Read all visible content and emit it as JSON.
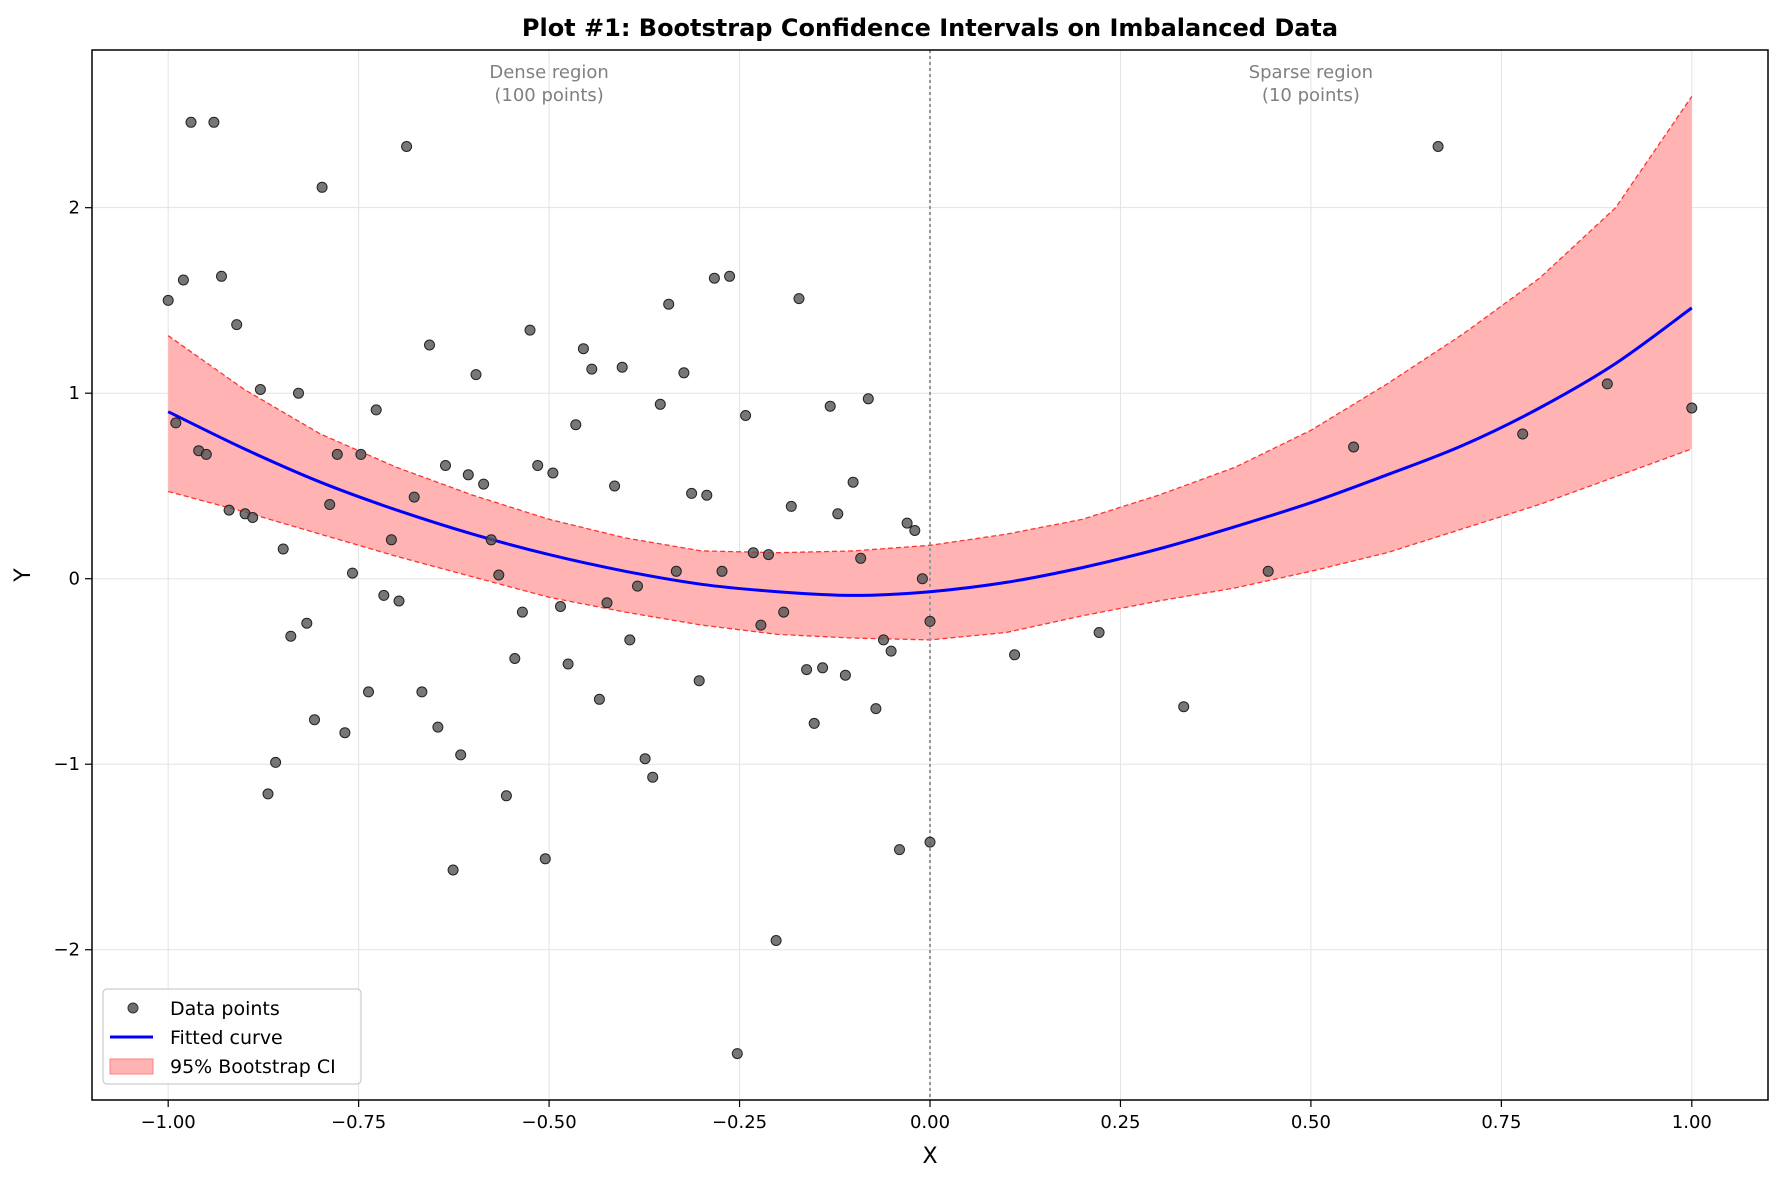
{
  "chart_data": {
    "type": "scatter",
    "title": "Plot #1: Bootstrap Confidence Intervals on Imbalanced Data",
    "xlabel": "X",
    "ylabel": "Y",
    "xlim": [
      -1.1,
      1.1
    ],
    "ylim": [
      -2.81,
      2.85
    ],
    "grid": true,
    "legend_position": "bottom-left",
    "x_ticks": [
      -1.0,
      -0.75,
      -0.5,
      -0.25,
      0.0,
      0.25,
      0.5,
      0.75,
      1.0
    ],
    "x_tick_labels": [
      "−1.00",
      "−0.75",
      "−0.50",
      "−0.25",
      "0.00",
      "0.25",
      "0.50",
      "0.75",
      "1.00"
    ],
    "y_ticks": [
      -2,
      -1,
      0,
      1,
      2
    ],
    "y_tick_labels": [
      "−2",
      "−1",
      "0",
      "1",
      "2"
    ],
    "legend": [
      "Data points",
      "Fitted curve",
      "95% Bootstrap CI"
    ],
    "annotations": [
      {
        "lines": [
          "Dense region",
          "(100 points)"
        ],
        "x": -0.5
      },
      {
        "lines": [
          "Sparse region",
          "(10 points)"
        ],
        "x": 0.5
      }
    ],
    "divider_x": 0.0,
    "colors": {
      "points": "#555555",
      "curve": "#0000ff",
      "ci_fill": "#ffb3b3",
      "ci_edge": "#ff3333",
      "divider": "#999999",
      "annotation": "#808080"
    },
    "series": [
      {
        "name": "Data points",
        "kind": "scatter",
        "points": [
          [
            -1.0,
            1.5
          ],
          [
            -0.99,
            0.84
          ],
          [
            -0.98,
            1.61
          ],
          [
            -0.97,
            2.46
          ],
          [
            -0.96,
            0.69
          ],
          [
            -0.95,
            0.67
          ],
          [
            -0.94,
            2.46
          ],
          [
            -0.93,
            1.63
          ],
          [
            -0.92,
            0.37
          ],
          [
            -0.91,
            1.37
          ],
          [
            -0.899,
            0.35
          ],
          [
            -0.889,
            0.33
          ],
          [
            -0.879,
            1.02
          ],
          [
            -0.869,
            -1.16
          ],
          [
            -0.859,
            -0.99
          ],
          [
            -0.849,
            0.16
          ],
          [
            -0.839,
            -0.31
          ],
          [
            -0.829,
            1.0
          ],
          [
            -0.818,
            -0.24
          ],
          [
            -0.808,
            -0.76
          ],
          [
            -0.798,
            2.11
          ],
          [
            -0.788,
            0.4
          ],
          [
            -0.778,
            0.67
          ],
          [
            -0.768,
            -0.83
          ],
          [
            -0.758,
            0.03
          ],
          [
            -0.747,
            0.67
          ],
          [
            -0.737,
            -0.61
          ],
          [
            -0.727,
            0.91
          ],
          [
            -0.717,
            -0.09
          ],
          [
            -0.707,
            0.21
          ],
          [
            -0.697,
            -0.12
          ],
          [
            -0.687,
            2.33
          ],
          [
            -0.677,
            0.44
          ],
          [
            -0.667,
            -0.61
          ],
          [
            -0.657,
            1.26
          ],
          [
            -0.646,
            -0.8
          ],
          [
            -0.636,
            0.61
          ],
          [
            -0.626,
            -1.57
          ],
          [
            -0.616,
            -0.95
          ],
          [
            -0.606,
            0.56
          ],
          [
            -0.596,
            1.1
          ],
          [
            -0.586,
            0.51
          ],
          [
            -0.576,
            0.21
          ],
          [
            -0.566,
            0.02
          ],
          [
            -0.556,
            -1.17
          ],
          [
            -0.545,
            -0.43
          ],
          [
            -0.535,
            -0.18
          ],
          [
            -0.525,
            1.34
          ],
          [
            -0.515,
            0.61
          ],
          [
            -0.505,
            -1.51
          ],
          [
            -0.495,
            0.57
          ],
          [
            -0.485,
            -0.15
          ],
          [
            -0.475,
            -0.46
          ],
          [
            -0.465,
            0.83
          ],
          [
            -0.455,
            1.24
          ],
          [
            -0.444,
            1.13
          ],
          [
            -0.434,
            -0.65
          ],
          [
            -0.424,
            -0.13
          ],
          [
            -0.414,
            0.5
          ],
          [
            -0.404,
            1.14
          ],
          [
            -0.394,
            -0.33
          ],
          [
            -0.384,
            -0.04
          ],
          [
            -0.374,
            -0.97
          ],
          [
            -0.364,
            -1.07
          ],
          [
            -0.354,
            0.94
          ],
          [
            -0.343,
            1.48
          ],
          [
            -0.333,
            0.04
          ],
          [
            -0.323,
            1.11
          ],
          [
            -0.313,
            0.46
          ],
          [
            -0.303,
            -0.55
          ],
          [
            -0.293,
            0.45
          ],
          [
            -0.283,
            1.62
          ],
          [
            -0.273,
            0.04
          ],
          [
            -0.263,
            1.63
          ],
          [
            -0.253,
            -2.56
          ],
          [
            -0.242,
            0.88
          ],
          [
            -0.232,
            0.14
          ],
          [
            -0.222,
            -0.25
          ],
          [
            -0.212,
            0.13
          ],
          [
            -0.202,
            -1.95
          ],
          [
            -0.192,
            -0.18
          ],
          [
            -0.182,
            0.39
          ],
          [
            -0.172,
            1.51
          ],
          [
            -0.162,
            -0.49
          ],
          [
            -0.152,
            -0.78
          ],
          [
            -0.141,
            -0.48
          ],
          [
            -0.131,
            0.93
          ],
          [
            -0.121,
            0.35
          ],
          [
            -0.111,
            -0.52
          ],
          [
            -0.101,
            0.52
          ],
          [
            -0.091,
            0.11
          ],
          [
            -0.081,
            0.97
          ],
          [
            -0.071,
            -0.7
          ],
          [
            -0.061,
            -0.33
          ],
          [
            -0.051,
            -0.39
          ],
          [
            -0.04,
            -1.46
          ],
          [
            -0.03,
            0.3
          ],
          [
            -0.02,
            0.26
          ],
          [
            -0.01,
            0.0
          ],
          [
            0.0,
            -1.42
          ],
          [
            0.0,
            -0.23
          ],
          [
            0.111,
            -0.41
          ],
          [
            0.222,
            -0.29
          ],
          [
            0.333,
            -0.69
          ],
          [
            0.444,
            0.04
          ],
          [
            0.556,
            0.71
          ],
          [
            0.667,
            2.33
          ],
          [
            0.778,
            0.78
          ],
          [
            0.889,
            1.05
          ],
          [
            1.0,
            0.92
          ]
        ]
      },
      {
        "name": "Fitted curve",
        "kind": "line",
        "x": [
          -1.0,
          -0.9,
          -0.8,
          -0.7,
          -0.6,
          -0.5,
          -0.4,
          -0.3,
          -0.2,
          -0.1,
          0.0,
          0.1,
          0.2,
          0.3,
          0.4,
          0.5,
          0.6,
          0.7,
          0.8,
          0.9,
          1.0
        ],
        "y": [
          0.9,
          0.7,
          0.52,
          0.37,
          0.24,
          0.13,
          0.04,
          -0.03,
          -0.07,
          -0.09,
          -0.07,
          -0.02,
          0.06,
          0.16,
          0.28,
          0.41,
          0.56,
          0.72,
          0.92,
          1.16,
          1.46
        ]
      },
      {
        "name": "95% Bootstrap CI",
        "kind": "band",
        "x": [
          -1.0,
          -0.9,
          -0.8,
          -0.7,
          -0.6,
          -0.5,
          -0.4,
          -0.3,
          -0.2,
          -0.1,
          0.0,
          0.1,
          0.2,
          0.3,
          0.4,
          0.5,
          0.6,
          0.7,
          0.8,
          0.9,
          1.0
        ],
        "lower": [
          0.47,
          0.36,
          0.24,
          0.12,
          0.01,
          -0.1,
          -0.18,
          -0.25,
          -0.3,
          -0.32,
          -0.33,
          -0.29,
          -0.2,
          -0.12,
          -0.05,
          0.04,
          0.14,
          0.27,
          0.4,
          0.55,
          0.7
        ],
        "upper": [
          1.31,
          1.02,
          0.78,
          0.6,
          0.45,
          0.32,
          0.22,
          0.15,
          0.14,
          0.15,
          0.18,
          0.24,
          0.32,
          0.45,
          0.6,
          0.8,
          1.05,
          1.32,
          1.62,
          2.0,
          2.6
        ]
      }
    ]
  }
}
